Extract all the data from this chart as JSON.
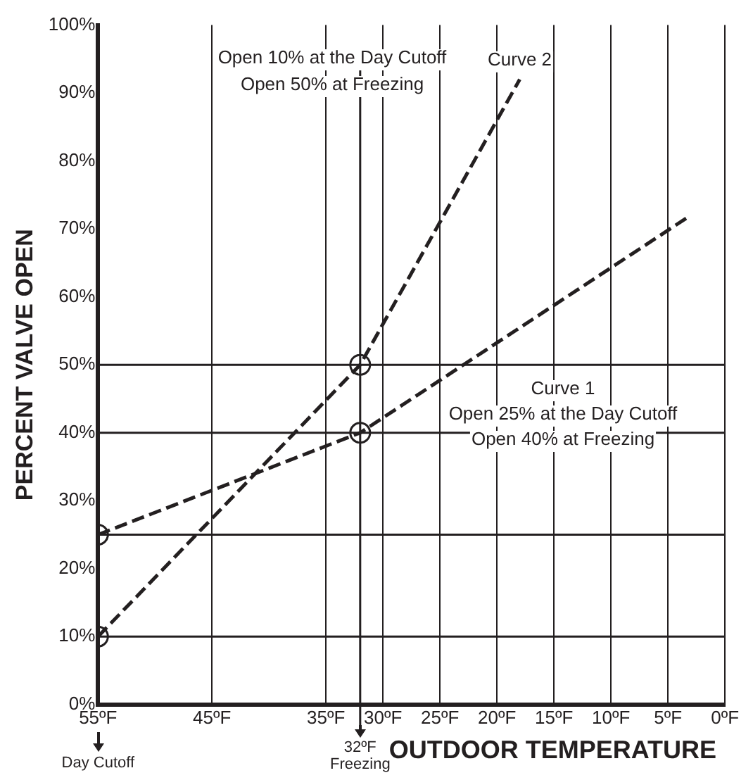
{
  "chart_data": {
    "type": "line",
    "xlabel": "OUTDOOR TEMPERATURE",
    "ylabel": "PERCENT VALVE OPEN",
    "xlim": [
      55,
      0
    ],
    "xticks": [
      {
        "value": 55,
        "label": "55ºF"
      },
      {
        "value": 45,
        "label": "45ºF"
      },
      {
        "value": 35,
        "label": "35ºF"
      },
      {
        "value": 30,
        "label": "30ºF"
      },
      {
        "value": 25,
        "label": "25ºF"
      },
      {
        "value": 20,
        "label": "20ºF"
      },
      {
        "value": 15,
        "label": "15ºF"
      },
      {
        "value": 10,
        "label": "10ºF"
      },
      {
        "value": 5,
        "label": "5ºF"
      },
      {
        "value": 0,
        "label": "0ºF"
      }
    ],
    "ylim": [
      0,
      100
    ],
    "yticks": [
      {
        "value": 0,
        "label": "0%"
      },
      {
        "value": 10,
        "label": "10%"
      },
      {
        "value": 20,
        "label": "20%"
      },
      {
        "value": 30,
        "label": "30%"
      },
      {
        "value": 40,
        "label": "40%"
      },
      {
        "value": 50,
        "label": "50%"
      },
      {
        "value": 60,
        "label": "60%"
      },
      {
        "value": 70,
        "label": "70%"
      },
      {
        "value": 80,
        "label": "80%"
      },
      {
        "value": 90,
        "label": "90%"
      },
      {
        "value": 100,
        "label": "100%"
      }
    ],
    "grid": "x",
    "legend": false,
    "series": [
      {
        "name": "Curve 1",
        "color": "#231f20",
        "x": [
          55,
          32,
          3
        ],
        "values": [
          25,
          40,
          72
        ],
        "line_style": "dashed",
        "marker": "none"
      },
      {
        "name": "Curve 2",
        "color": "#231f20",
        "x": [
          55,
          32,
          18
        ],
        "values": [
          10,
          50,
          92
        ],
        "line_style": "dashed",
        "marker": "none"
      },
      {
        "type": "scatter",
        "color": "#231f20",
        "x": [
          55,
          55,
          32,
          32
        ],
        "values": [
          25,
          10,
          40,
          50
        ],
        "marker": "circle"
      }
    ],
    "ref_lines": [
      {
        "axis": "x",
        "value": 32,
        "label": "32ºF\nFreezing",
        "color": "#231f20"
      },
      {
        "axis": "y",
        "value": 10,
        "label": null,
        "color": "#231f20"
      },
      {
        "axis": "y",
        "value": 25,
        "label": null,
        "color": "#231f20"
      },
      {
        "axis": "y",
        "value": 40,
        "label": null,
        "color": "#231f20"
      },
      {
        "axis": "y",
        "value": 50,
        "label": null,
        "color": "#231f20"
      }
    ],
    "annotations": [
      "Open 25% at the Day Cutoff",
      "Open 40% at Freezing",
      "Open 10% at the Day Cutoff",
      "Open 50% at Freezing",
      "Day Cutoff"
    ]
  }
}
